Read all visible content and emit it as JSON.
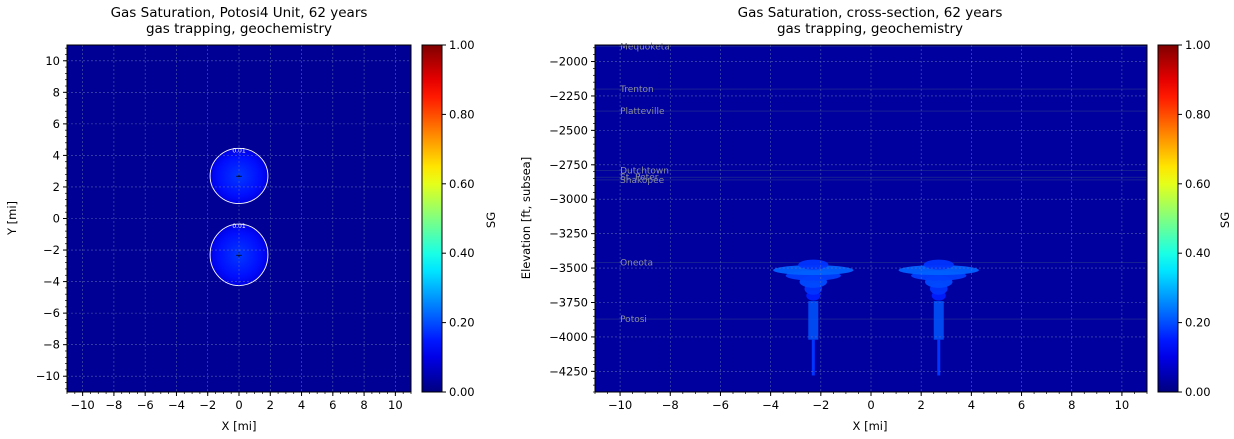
{
  "colormap": [
    "#000080",
    "#0000ff",
    "#00ffff",
    "#ffff00",
    "#ff0000",
    "#800000"
  ],
  "chart_data": [
    {
      "type": "heatmap",
      "title": "Gas Saturation, Potosi4 Unit,  62 years",
      "subtitle": "gas trapping, geochemistry",
      "xlabel": "X [mi]",
      "ylabel": "Y [mi]",
      "xlim": [
        -11,
        11
      ],
      "ylim": [
        -11,
        11
      ],
      "xticks": [
        -10,
        -8,
        -6,
        -4,
        -2,
        0,
        2,
        4,
        6,
        8,
        10
      ],
      "yticks": [
        -10,
        -8,
        -6,
        -4,
        -2,
        0,
        2,
        4,
        6,
        8,
        10
      ],
      "grid": true,
      "background_value": 0.02,
      "plumes": [
        {
          "x": 0,
          "y": 2.7,
          "radius_x": 1.85,
          "radius_y": 1.75,
          "peak": 0.18,
          "edge": 0.1
        },
        {
          "x": 0,
          "y": -2.3,
          "radius_x": 1.85,
          "radius_y": 1.95,
          "peak": 0.18,
          "edge": 0.1
        }
      ],
      "wells": [
        {
          "x": 0,
          "y": 2.7
        },
        {
          "x": 0,
          "y": -2.3
        }
      ],
      "contour_label": "0.01",
      "colorbar": {
        "label": "SG",
        "min": 0,
        "max": 1,
        "ticks": [
          "0.00",
          "0.20",
          "0.40",
          "0.60",
          "0.80",
          "1.00"
        ]
      }
    },
    {
      "type": "heatmap",
      "title": "Gas Saturation, cross-section,  62 years",
      "subtitle": "gas trapping, geochemistry",
      "xlabel": "X [mi]",
      "ylabel": "Elevation [ft, subsea]",
      "xlim": [
        -11,
        11
      ],
      "ylim": [
        -4400,
        -1880
      ],
      "xticks": [
        -10,
        -8,
        -6,
        -4,
        -2,
        0,
        2,
        4,
        6,
        8,
        10
      ],
      "yticks": [
        -2000,
        -2250,
        -2500,
        -2750,
        -3000,
        -3250,
        -3500,
        -3750,
        -4000,
        -4250
      ],
      "grid": true,
      "background_value": 0.03,
      "formations": [
        {
          "name": "Mequoketa",
          "elevation": -1890
        },
        {
          "name": "Trenton",
          "elevation": -2200
        },
        {
          "name": "Platteville",
          "elevation": -2360
        },
        {
          "name": "Dutchtown",
          "elevation": -2790
        },
        {
          "name": "St. Peter",
          "elevation": -2840
        },
        {
          "name": "Shakopee",
          "elevation": -2860
        },
        {
          "name": "Oneota",
          "elevation": -3460
        },
        {
          "name": "Potosi",
          "elevation": -3870
        }
      ],
      "plumes": [
        {
          "x": -2.3,
          "top": -3740,
          "core_bottom": -4020,
          "stem_bottom": -4280,
          "peak": 0.22
        },
        {
          "x": 2.7,
          "top": -3740,
          "core_bottom": -4020,
          "stem_bottom": -4280,
          "peak": 0.22
        }
      ],
      "colorbar": {
        "label": "SG",
        "min": 0,
        "max": 1,
        "ticks": [
          "0.00",
          "0.20",
          "0.40",
          "0.60",
          "0.80",
          "1.00"
        ]
      }
    }
  ]
}
